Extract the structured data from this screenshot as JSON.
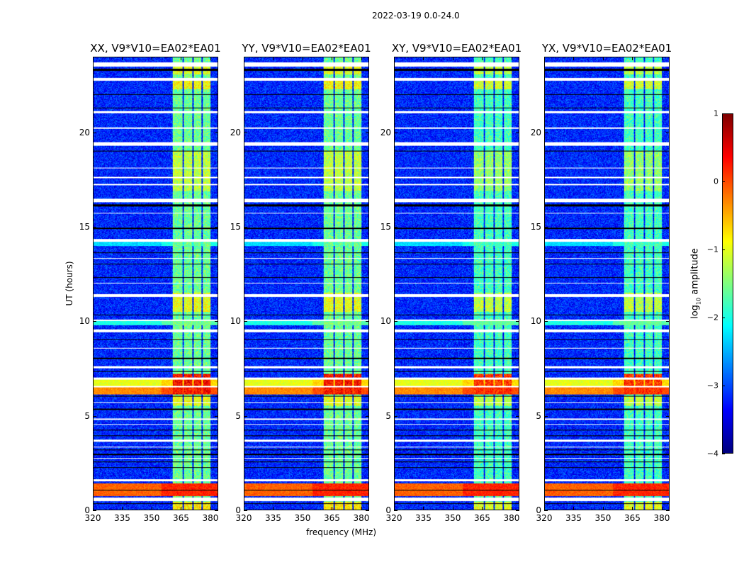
{
  "chart_data": {
    "type": "heatmap",
    "title": "2022-03-19 0.0-24.0",
    "xlabel": "frequency (MHz)",
    "ylabel": "UT (hours)",
    "xlim": [
      320,
      384
    ],
    "ylim": [
      0,
      24
    ],
    "xticks": [
      320,
      335,
      350,
      365,
      380
    ],
    "yticks": [
      0,
      5,
      10,
      15,
      20
    ],
    "panels": [
      {
        "title": "XX, V9*V10=EA02*EA01"
      },
      {
        "title": "YY, V9*V10=EA02*EA01"
      },
      {
        "title": "XY, V9*V10=EA02*EA01"
      },
      {
        "title": "YX, V9*V10=EA02*EA01"
      }
    ],
    "colorbar": {
      "label": "log10 amplitude",
      "label_main": "log",
      "label_sub": "10",
      "label_rest": " amplitude",
      "range": [
        -4,
        1
      ],
      "ticks": [
        -4,
        -3,
        -2,
        -1,
        0,
        1
      ],
      "colormap": "jet"
    },
    "background_level": -3.2,
    "rfi_band_mhz": [
      361,
      380.5
    ],
    "rfi_subband_gaps_mhz": [
      366.2,
      371.3,
      376
    ],
    "rfi_default_level": -1.6,
    "rfi_levels": [
      [
        0,
        0.4,
        -0.8
      ],
      [
        5.5,
        6.0,
        -1.0
      ],
      [
        6.1,
        7.2,
        0.3
      ],
      [
        10.5,
        11.5,
        -1.0
      ],
      [
        16.9,
        19.0,
        -1.2
      ],
      [
        22.3,
        22.8,
        -0.9
      ],
      [
        23.1,
        23.5,
        -1.0
      ]
    ],
    "broadband_levels": [
      [
        0.7,
        1.4,
        -0.1
      ],
      [
        6.1,
        6.5,
        -0.3
      ],
      [
        6.55,
        6.9,
        -1.0
      ],
      [
        9.8,
        10.0,
        -2.0
      ],
      [
        14.0,
        14.2,
        -2.3
      ]
    ],
    "flagged_hours": [
      [
        23.5,
        23.75
      ],
      [
        22.75,
        22.9
      ],
      [
        21.05,
        21.15
      ],
      [
        20.2,
        20.3
      ],
      [
        19.3,
        19.5
      ],
      [
        18.1,
        18.15
      ],
      [
        17.6,
        17.65
      ],
      [
        17.2,
        17.3
      ],
      [
        16.3,
        16.5
      ],
      [
        15.7,
        15.75
      ],
      [
        14.2,
        14.35
      ],
      [
        13.3,
        13.35
      ],
      [
        12.0,
        12.05
      ],
      [
        11.3,
        11.45
      ],
      [
        10.0,
        10.1
      ],
      [
        9.4,
        9.55
      ],
      [
        8.55,
        8.6
      ],
      [
        7.5,
        7.6
      ],
      [
        6.9,
        7.0
      ],
      [
        6.5,
        6.55
      ],
      [
        5.65,
        5.7
      ],
      [
        4.75,
        4.85
      ],
      [
        4.5,
        4.55
      ],
      [
        3.6,
        3.7
      ],
      [
        3.3,
        3.35
      ],
      [
        2.7,
        2.75
      ],
      [
        1.5,
        1.6
      ],
      [
        0.45,
        0.65
      ]
    ],
    "zero_hours": [
      [
        23.3,
        23.4
      ],
      [
        22.0,
        22.05
      ],
      [
        21.3,
        21.35
      ],
      [
        19.0,
        19.05
      ],
      [
        16.1,
        16.2
      ],
      [
        14.9,
        14.95
      ],
      [
        13.6,
        13.65
      ],
      [
        13.0,
        13.05
      ],
      [
        12.3,
        12.35
      ],
      [
        10.3,
        10.35
      ],
      [
        9.0,
        9.05
      ],
      [
        8.0,
        8.05
      ],
      [
        7.3,
        7.35
      ],
      [
        6.0,
        6.05
      ],
      [
        5.3,
        5.35
      ],
      [
        4.2,
        4.25
      ],
      [
        3.9,
        3.95
      ],
      [
        3.15,
        3.2
      ],
      [
        2.9,
        2.95
      ],
      [
        2.5,
        2.55
      ],
      [
        2.2,
        2.25
      ],
      [
        1.0,
        1.05
      ],
      [
        0.3,
        0.35
      ]
    ]
  }
}
